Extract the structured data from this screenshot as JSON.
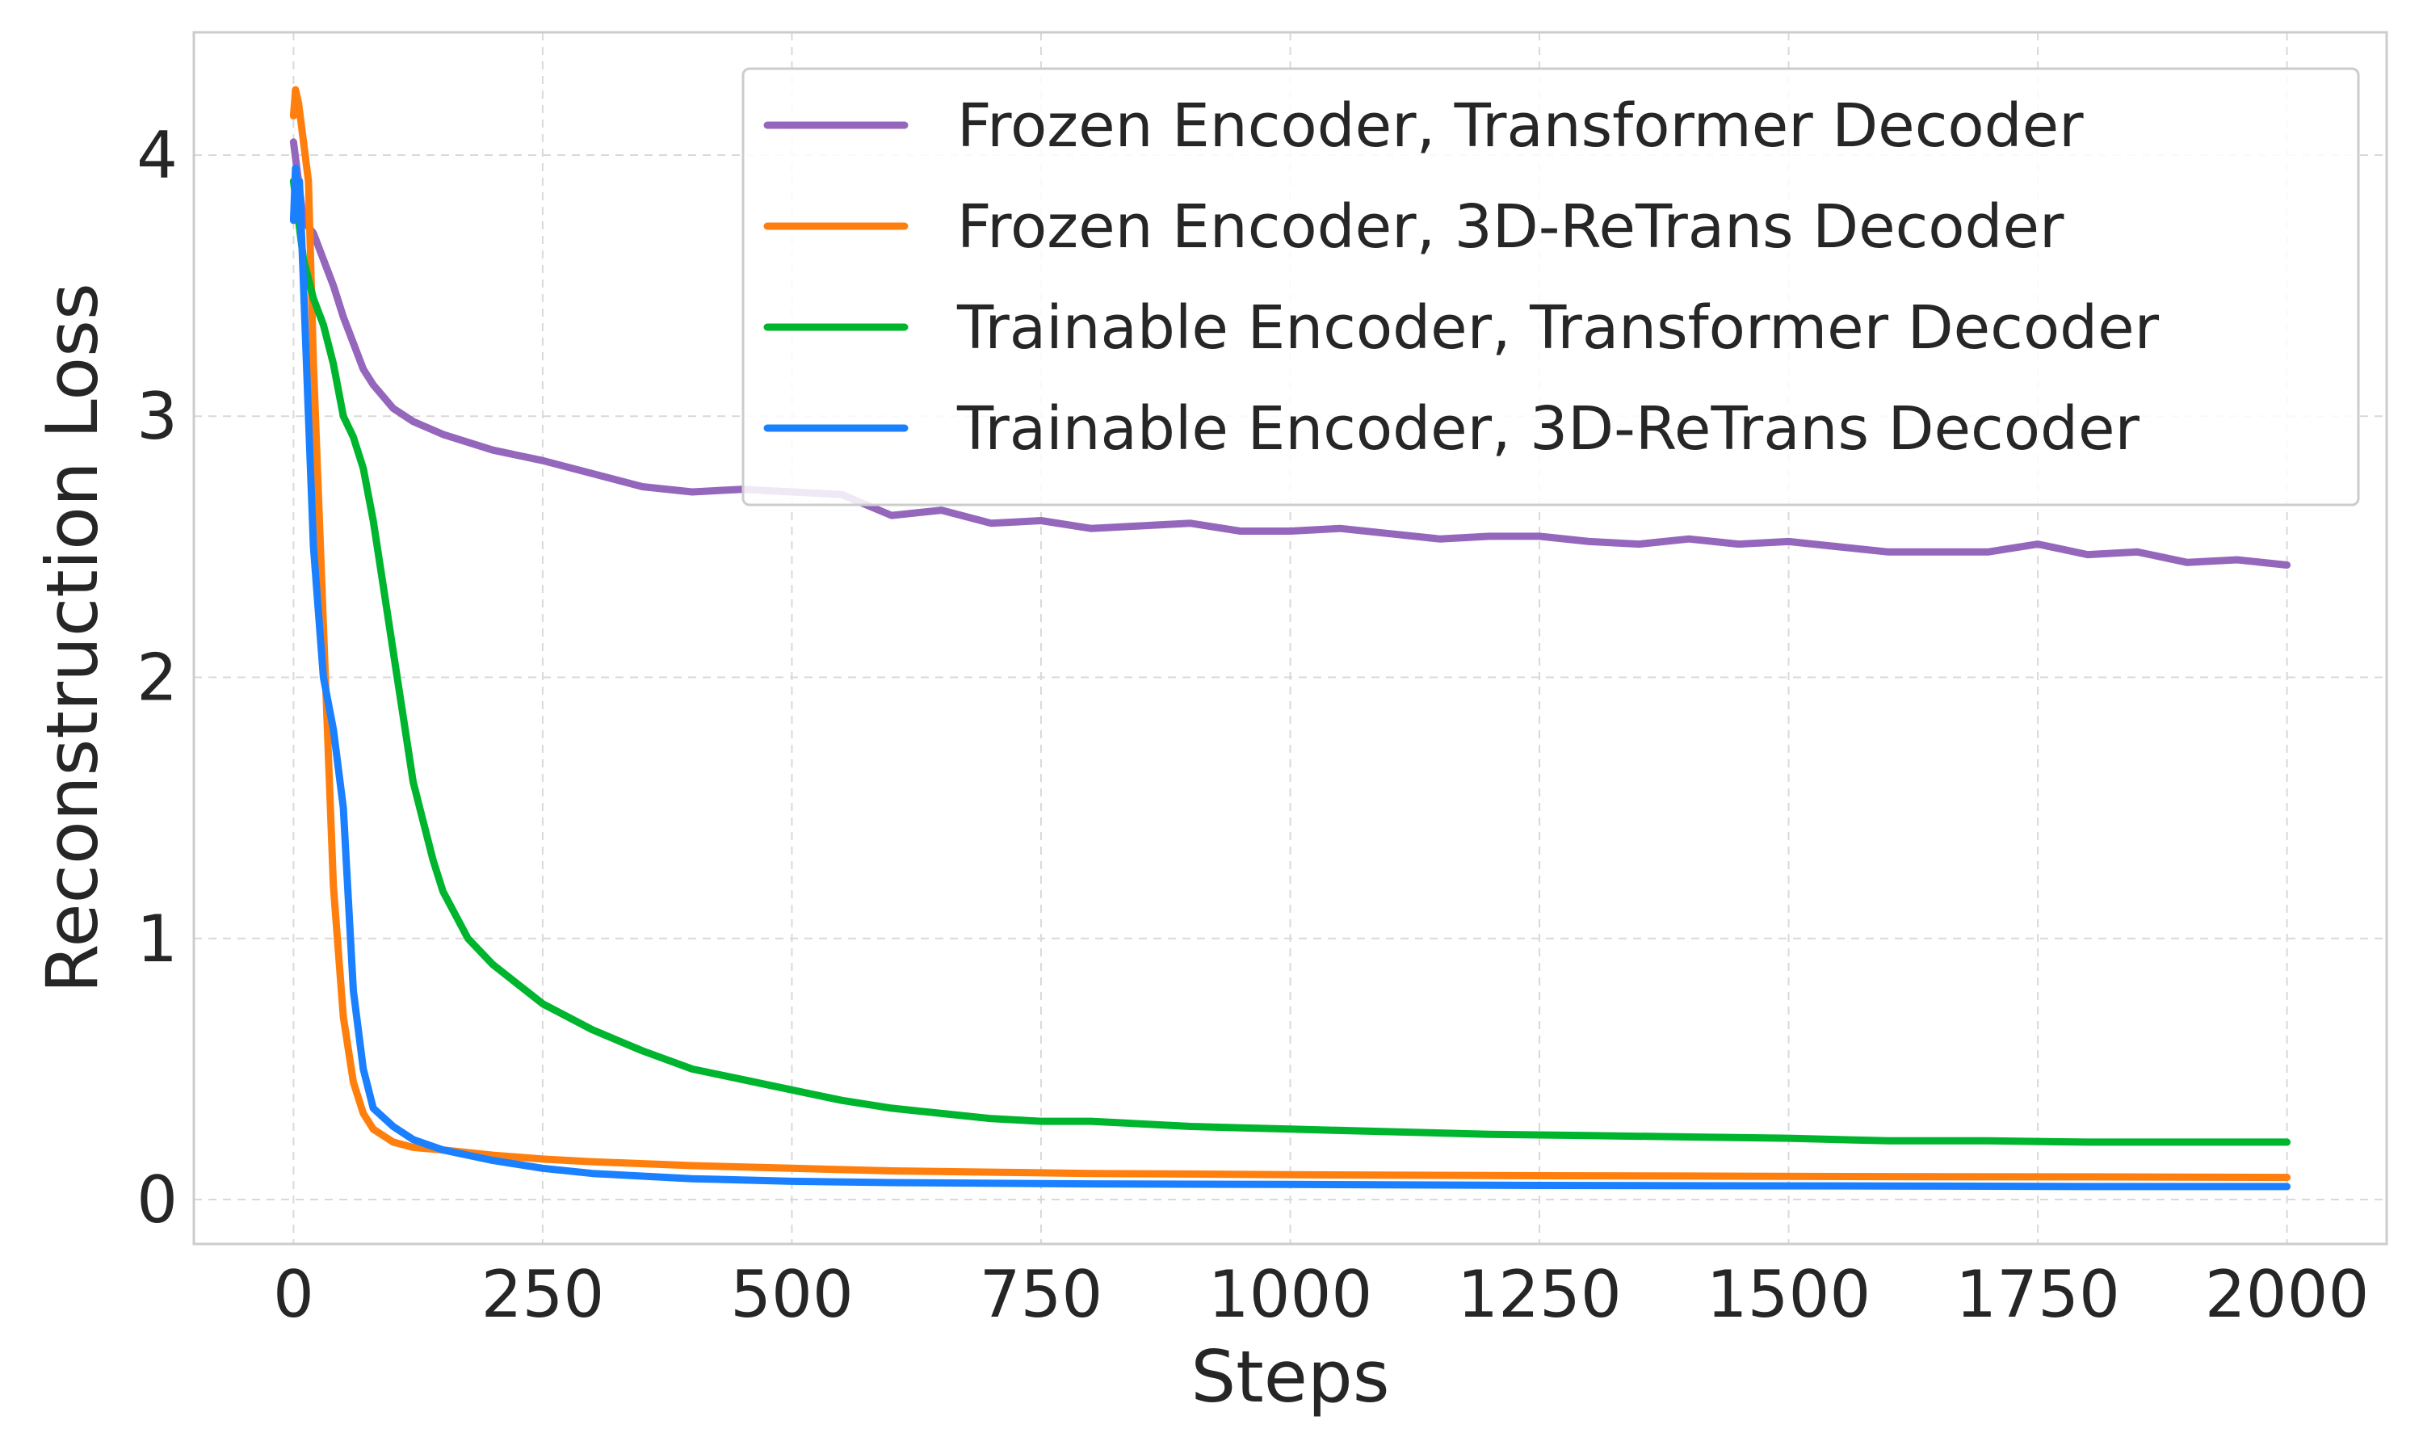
{
  "chart_data": {
    "type": "line",
    "title": "",
    "xlabel": "Steps",
    "ylabel": "Reconstruction Loss",
    "xlim": [
      -100,
      2100
    ],
    "ylim": [
      -0.17,
      4.47
    ],
    "xticks": [
      0,
      250,
      500,
      750,
      1000,
      1250,
      1500,
      1750,
      2000
    ],
    "yticks": [
      0,
      1,
      2,
      3,
      4
    ],
    "grid": true,
    "legend_position": "top-right",
    "series": [
      {
        "name": "Frozen Encoder, Transformer Decoder",
        "color": "#9467bd",
        "x": [
          0,
          5,
          10,
          20,
          30,
          40,
          50,
          60,
          70,
          80,
          100,
          120,
          150,
          200,
          250,
          300,
          350,
          400,
          450,
          500,
          550,
          600,
          650,
          700,
          750,
          800,
          850,
          900,
          950,
          1000,
          1050,
          1100,
          1150,
          1200,
          1250,
          1300,
          1350,
          1400,
          1450,
          1500,
          1550,
          1600,
          1650,
          1700,
          1750,
          1800,
          1850,
          1900,
          1950,
          2000
        ],
        "y": [
          4.05,
          3.9,
          3.75,
          3.7,
          3.6,
          3.5,
          3.38,
          3.28,
          3.18,
          3.12,
          3.03,
          2.98,
          2.93,
          2.87,
          2.83,
          2.78,
          2.73,
          2.71,
          2.72,
          2.71,
          2.7,
          2.62,
          2.64,
          2.59,
          2.6,
          2.57,
          2.58,
          2.59,
          2.56,
          2.56,
          2.57,
          2.55,
          2.53,
          2.54,
          2.54,
          2.52,
          2.51,
          2.53,
          2.51,
          2.52,
          2.5,
          2.48,
          2.48,
          2.48,
          2.51,
          2.47,
          2.48,
          2.44,
          2.45,
          2.43
        ]
      },
      {
        "name": "Frozen Encoder, 3D-ReTrans Decoder",
        "color": "#ff7f0e",
        "x": [
          0,
          2,
          5,
          10,
          15,
          20,
          30,
          40,
          50,
          60,
          70,
          80,
          100,
          120,
          150,
          200,
          250,
          300,
          400,
          500,
          600,
          700,
          800,
          900,
          1000,
          1200,
          1400,
          1600,
          1800,
          2000
        ],
        "y": [
          4.15,
          4.25,
          4.2,
          4.05,
          3.9,
          3.2,
          2.2,
          1.2,
          0.7,
          0.45,
          0.33,
          0.27,
          0.22,
          0.2,
          0.19,
          0.17,
          0.155,
          0.145,
          0.13,
          0.12,
          0.11,
          0.105,
          0.1,
          0.098,
          0.095,
          0.092,
          0.09,
          0.088,
          0.087,
          0.085
        ]
      },
      {
        "name": "Trainable Encoder, Transformer Decoder",
        "color": "#00b52e",
        "x": [
          0,
          5,
          10,
          20,
          30,
          40,
          50,
          60,
          70,
          80,
          90,
          100,
          110,
          120,
          130,
          140,
          150,
          175,
          200,
          250,
          300,
          350,
          400,
          450,
          500,
          550,
          600,
          650,
          700,
          750,
          800,
          900,
          1000,
          1100,
          1200,
          1300,
          1400,
          1500,
          1600,
          1700,
          1800,
          1900,
          2000
        ],
        "y": [
          3.9,
          3.75,
          3.6,
          3.45,
          3.35,
          3.2,
          3.0,
          2.92,
          2.8,
          2.6,
          2.35,
          2.1,
          1.85,
          1.6,
          1.45,
          1.3,
          1.18,
          1.0,
          0.9,
          0.75,
          0.65,
          0.57,
          0.5,
          0.46,
          0.42,
          0.38,
          0.35,
          0.33,
          0.31,
          0.3,
          0.3,
          0.28,
          0.27,
          0.26,
          0.25,
          0.245,
          0.24,
          0.235,
          0.225,
          0.225,
          0.22,
          0.22,
          0.22
        ]
      },
      {
        "name": "Trainable Encoder, 3D-ReTrans Decoder",
        "color": "#1a80ff",
        "x": [
          0,
          2,
          4,
          6,
          8,
          10,
          15,
          20,
          30,
          40,
          50,
          60,
          70,
          80,
          100,
          120,
          150,
          200,
          250,
          300,
          400,
          500,
          600,
          800,
          1000,
          1200,
          1400,
          1600,
          1800,
          2000
        ],
        "y": [
          3.75,
          3.95,
          3.8,
          3.9,
          3.7,
          3.5,
          3.0,
          2.5,
          2.0,
          1.8,
          1.5,
          0.8,
          0.5,
          0.35,
          0.28,
          0.23,
          0.19,
          0.15,
          0.12,
          0.1,
          0.08,
          0.07,
          0.065,
          0.06,
          0.058,
          0.055,
          0.053,
          0.052,
          0.05,
          0.05
        ]
      }
    ]
  }
}
